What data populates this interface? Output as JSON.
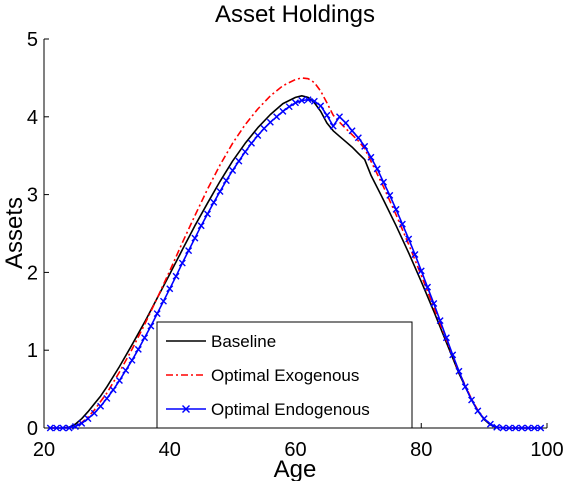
{
  "chart_data": {
    "type": "line",
    "title": "Asset Holdings",
    "xlabel": "Age",
    "ylabel": "Assets",
    "xlim": [
      20,
      100
    ],
    "ylim": [
      0,
      5
    ],
    "xticks": [
      "20",
      "40",
      "60",
      "80",
      "100"
    ],
    "yticks": [
      "0",
      "1",
      "2",
      "3",
      "4",
      "5"
    ],
    "grid": false,
    "legend_position": "bottom-center",
    "series": [
      {
        "name": "Baseline",
        "color": "#000000",
        "style": "solid",
        "marker": "none",
        "x": [
          21,
          22,
          23,
          24,
          25,
          26,
          27,
          28,
          29,
          30,
          32,
          34,
          36,
          38,
          40,
          42,
          44,
          46,
          48,
          50,
          52,
          54,
          56,
          58,
          60,
          61,
          62,
          63,
          64,
          65,
          66,
          67,
          68,
          69,
          70,
          71,
          72,
          74,
          76,
          78,
          80,
          82,
          84,
          86,
          88,
          89,
          90,
          91,
          92,
          93,
          94,
          95,
          96,
          97,
          98,
          99
        ],
        "y": [
          0,
          0,
          0,
          0.01,
          0.05,
          0.12,
          0.21,
          0.31,
          0.41,
          0.53,
          0.79,
          1.07,
          1.36,
          1.67,
          1.98,
          2.29,
          2.6,
          2.89,
          3.17,
          3.43,
          3.66,
          3.86,
          4.03,
          4.17,
          4.25,
          4.27,
          4.25,
          4.18,
          4.07,
          3.92,
          3.82,
          3.75,
          3.68,
          3.61,
          3.53,
          3.45,
          3.25,
          2.93,
          2.6,
          2.25,
          1.88,
          1.5,
          1.1,
          0.7,
          0.36,
          0.22,
          0.11,
          0.04,
          0.01,
          0,
          0,
          0,
          0,
          0,
          0,
          0
        ]
      },
      {
        "name": "Optimal Exogenous",
        "color": "#ff0000",
        "style": "dashdot",
        "marker": "none",
        "x": [
          21,
          22,
          23,
          24,
          25,
          26,
          27,
          28,
          29,
          30,
          32,
          34,
          36,
          38,
          40,
          42,
          44,
          46,
          48,
          50,
          52,
          54,
          56,
          58,
          60,
          61,
          62,
          63,
          64,
          65,
          66,
          67,
          68,
          69,
          70,
          71,
          72,
          74,
          76,
          78,
          80,
          82,
          84,
          86,
          88,
          89,
          90,
          91,
          92,
          93,
          94,
          95,
          96,
          97,
          98,
          99
        ],
        "y": [
          0,
          0,
          0,
          0,
          0.02,
          0.07,
          0.14,
          0.23,
          0.34,
          0.45,
          0.72,
          1.01,
          1.33,
          1.67,
          2.02,
          2.38,
          2.73,
          3.07,
          3.38,
          3.66,
          3.9,
          4.1,
          4.27,
          4.4,
          4.48,
          4.5,
          4.49,
          4.44,
          4.33,
          4.18,
          4.02,
          3.93,
          3.85,
          3.77,
          3.69,
          3.59,
          3.43,
          3.1,
          2.74,
          2.36,
          1.96,
          1.55,
          1.13,
          0.72,
          0.37,
          0.23,
          0.12,
          0.05,
          0.01,
          0,
          0,
          0,
          0,
          0,
          0,
          0
        ]
      },
      {
        "name": "Optimal Endogenous",
        "color": "#0000ff",
        "style": "solid",
        "marker": "x",
        "x": [
          21,
          22,
          23,
          24,
          25,
          26,
          27,
          28,
          29,
          30,
          31,
          32,
          33,
          34,
          35,
          36,
          37,
          38,
          39,
          40,
          41,
          42,
          43,
          44,
          45,
          46,
          47,
          48,
          49,
          50,
          51,
          52,
          53,
          54,
          55,
          56,
          57,
          58,
          59,
          60,
          61,
          62,
          63,
          64,
          65,
          66,
          67,
          68,
          69,
          70,
          71,
          72,
          73,
          74,
          75,
          76,
          77,
          78,
          79,
          80,
          81,
          82,
          83,
          84,
          85,
          86,
          87,
          88,
          89,
          90,
          91,
          92,
          93,
          94,
          95,
          96,
          97,
          98,
          99
        ],
        "y": [
          0,
          0,
          0,
          0,
          0.02,
          0.06,
          0.12,
          0.19,
          0.28,
          0.38,
          0.49,
          0.61,
          0.74,
          0.87,
          1.01,
          1.16,
          1.31,
          1.47,
          1.63,
          1.79,
          1.95,
          2.12,
          2.28,
          2.44,
          2.6,
          2.75,
          2.9,
          3.04,
          3.18,
          3.31,
          3.43,
          3.55,
          3.66,
          3.76,
          3.85,
          3.93,
          4.0,
          4.07,
          4.13,
          4.18,
          4.21,
          4.22,
          4.2,
          4.14,
          4.02,
          3.88,
          4.0,
          3.92,
          3.82,
          3.73,
          3.62,
          3.48,
          3.33,
          3.16,
          2.99,
          2.81,
          2.62,
          2.43,
          2.23,
          2.02,
          1.81,
          1.6,
          1.38,
          1.16,
          0.94,
          0.73,
          0.53,
          0.36,
          0.22,
          0.12,
          0.05,
          0.01,
          0,
          0,
          0,
          0,
          0,
          0,
          0
        ]
      }
    ]
  }
}
